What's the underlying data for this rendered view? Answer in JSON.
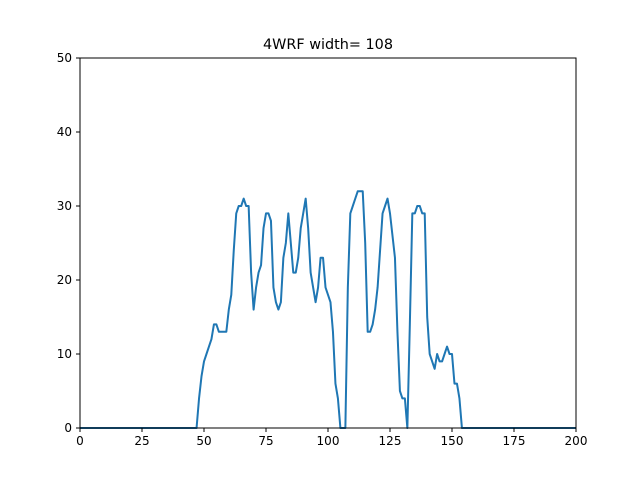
{
  "chart_data": {
    "type": "line",
    "title": "4WRF width= 108",
    "xlabel": "",
    "ylabel": "",
    "xlim": [
      0,
      200
    ],
    "ylim": [
      0,
      50
    ],
    "xticks": [
      0,
      25,
      50,
      75,
      100,
      125,
      150,
      175,
      200
    ],
    "yticks": [
      0,
      10,
      20,
      30,
      40,
      50
    ],
    "grid": false,
    "line_color": "#1f77b4",
    "series": [
      {
        "x": [
          0,
          47,
          48,
          49,
          50,
          51,
          52,
          53,
          54,
          55,
          56,
          57,
          58,
          59,
          60,
          61,
          62,
          63,
          64,
          65,
          66,
          67,
          68,
          69,
          70,
          71,
          72,
          73,
          74,
          75,
          76,
          77,
          78,
          79,
          80,
          81,
          82,
          83,
          84,
          85,
          86,
          87,
          88,
          89,
          90,
          91,
          92,
          93,
          94,
          95,
          96,
          97,
          98,
          99,
          100,
          101,
          102,
          103,
          104,
          105,
          106,
          107,
          108,
          109,
          110,
          111,
          112,
          113,
          114,
          115,
          116,
          117,
          118,
          119,
          120,
          121,
          122,
          123,
          124,
          125,
          126,
          127,
          128,
          129,
          130,
          131,
          132,
          133,
          134,
          135,
          136,
          137,
          138,
          139,
          140,
          141,
          142,
          143,
          144,
          145,
          146,
          147,
          148,
          149,
          150,
          151,
          152,
          153,
          154,
          155,
          156,
          200
        ],
        "y": [
          0,
          0,
          4,
          7,
          9,
          10,
          11,
          12,
          14,
          14,
          13,
          13,
          13,
          13,
          16,
          18,
          24,
          29,
          30,
          30,
          31,
          30,
          30,
          21,
          16,
          19,
          21,
          22,
          27,
          29,
          29,
          28,
          19,
          17,
          16,
          17,
          23,
          25,
          29,
          25,
          21,
          21,
          23,
          27,
          29,
          31,
          27,
          21,
          19,
          17,
          19,
          23,
          23,
          19,
          18,
          17,
          13,
          6,
          4,
          0,
          0,
          0,
          19,
          29,
          30,
          31,
          32,
          32,
          32,
          25,
          13,
          13,
          14,
          16,
          19,
          24,
          29,
          30,
          31,
          29,
          26,
          23,
          13,
          5,
          4,
          4,
          0,
          14,
          29,
          29,
          30,
          30,
          29,
          29,
          15,
          10,
          9,
          8,
          10,
          9,
          9,
          10,
          11,
          10,
          10,
          6,
          6,
          4,
          0,
          0,
          0,
          0
        ]
      }
    ]
  }
}
